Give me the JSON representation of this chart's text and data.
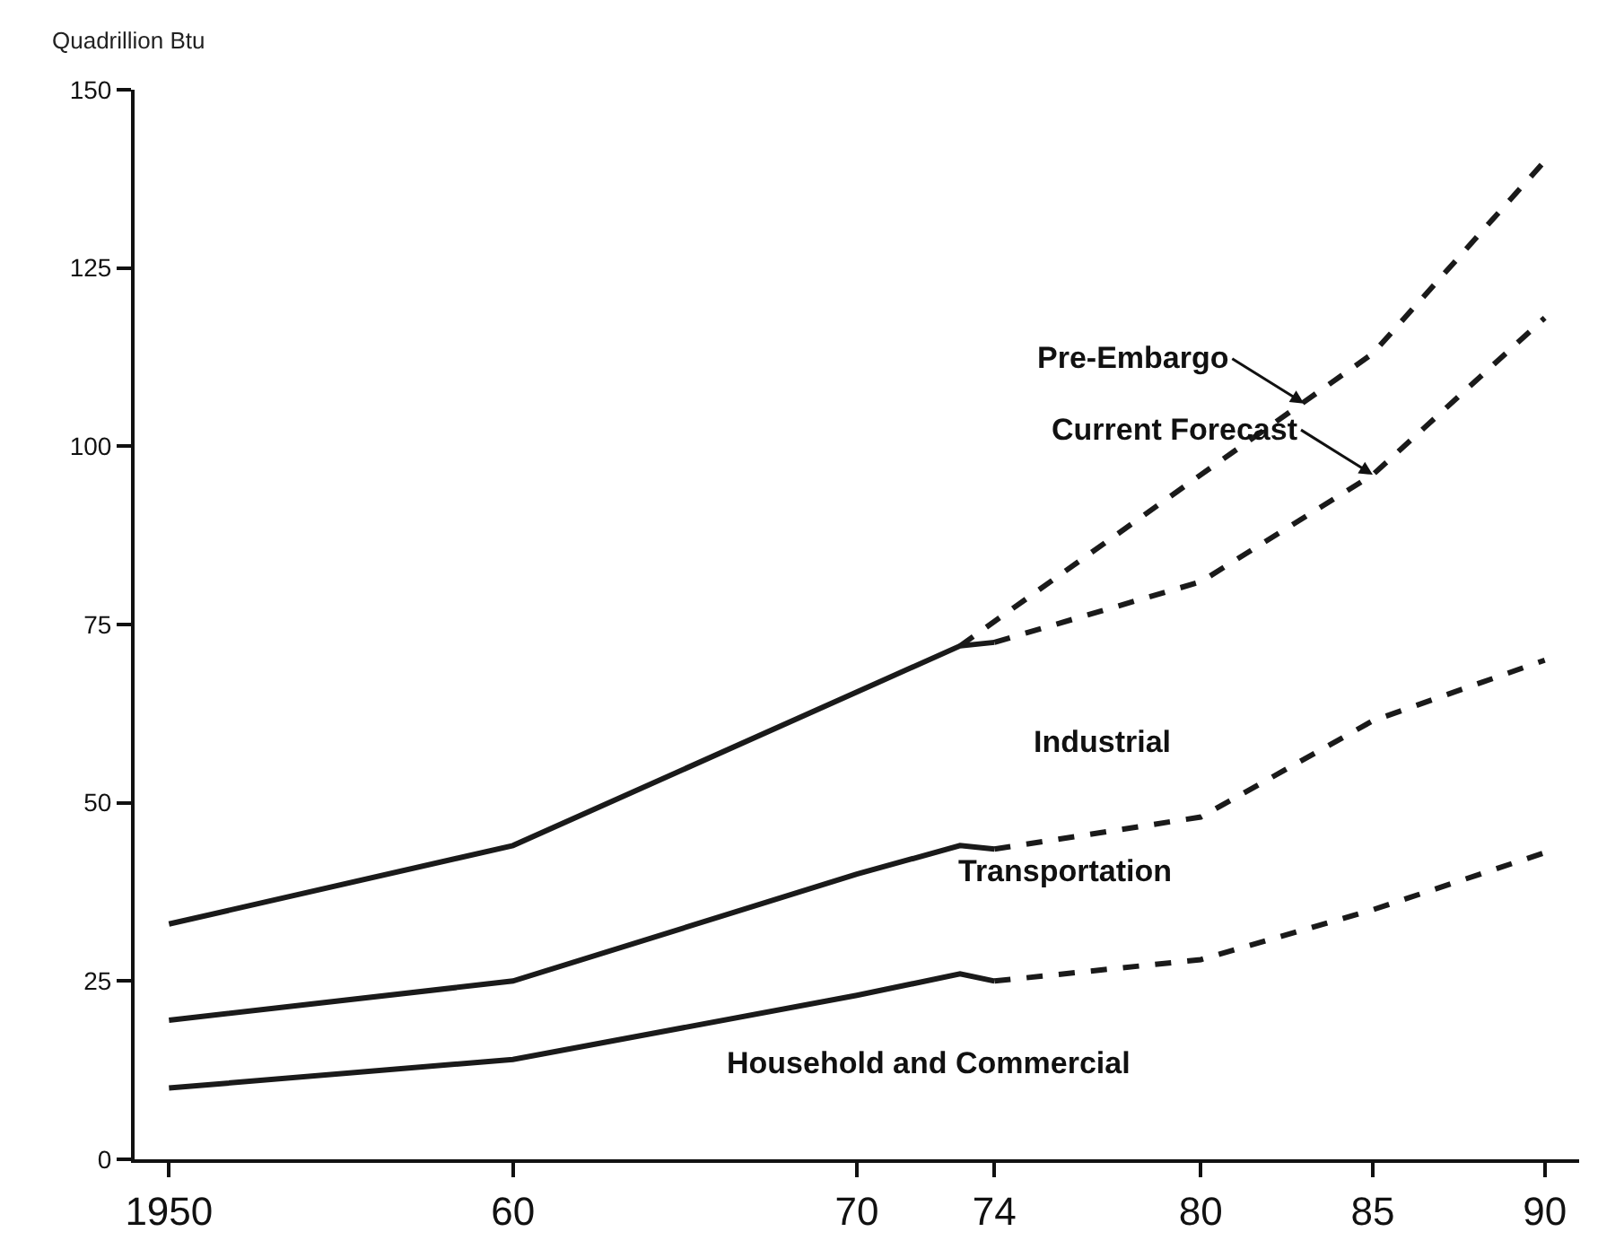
{
  "chart_data": {
    "type": "line",
    "ylabel": "Quadrillion Btu",
    "xlim": [
      1949,
      1991
    ],
    "ylim": [
      0,
      150
    ],
    "xticks": [
      1950,
      {
        "value": 1960,
        "label": "60"
      },
      {
        "value": 1970,
        "label": "70"
      },
      {
        "value": 1974,
        "label": "74"
      },
      {
        "value": 1980,
        "label": "80"
      },
      {
        "value": 1985,
        "label": "85"
      },
      {
        "value": 1990,
        "label": "90"
      }
    ],
    "yticks": [
      0,
      25,
      50,
      75,
      100,
      125,
      150
    ],
    "grid": false,
    "marker": "none",
    "series": [
      {
        "color": "#1a1a1a",
        "line_style": "solid",
        "x": [
          1950,
          1960,
          1973,
          1974
        ],
        "values": [
          33,
          44,
          72,
          72.5
        ]
      },
      {
        "color": "#1a1a1a",
        "line_style": "dashed",
        "x": [
          1974,
          1980,
          1985,
          1990
        ],
        "values": [
          72.5,
          81,
          96,
          118
        ]
      },
      {
        "color": "#1a1a1a",
        "line_style": "dashed",
        "x": [
          1973,
          1980,
          1985,
          1990
        ],
        "values": [
          72,
          96,
          113,
          140
        ]
      },
      {
        "color": "#1a1a1a",
        "line_style": "solid",
        "x": [
          1950,
          1960,
          1970,
          1973,
          1974
        ],
        "values": [
          19.5,
          25,
          40,
          44,
          43.5
        ]
      },
      {
        "color": "#1a1a1a",
        "line_style": "dashed",
        "x": [
          1974,
          1980,
          1985,
          1990
        ],
        "values": [
          43.5,
          48,
          61.5,
          70
        ]
      },
      {
        "color": "#1a1a1a",
        "line_style": "solid",
        "x": [
          1950,
          1960,
          1970,
          1973,
          1974
        ],
        "values": [
          10,
          14,
          23,
          26,
          25
        ]
      },
      {
        "color": "#1a1a1a",
        "line_style": "dashed",
        "x": [
          1974,
          1980,
          1985,
          1990
        ],
        "values": [
          25,
          28,
          35,
          43
        ]
      }
    ],
    "annotations": [
      {
        "text": "Pre-Embargo",
        "x": 1983,
        "y": 106
      },
      {
        "text": "Current Forecast",
        "x": 1985,
        "y": 96
      },
      "Industrial",
      "Transportation",
      "Household and Commercial"
    ]
  }
}
